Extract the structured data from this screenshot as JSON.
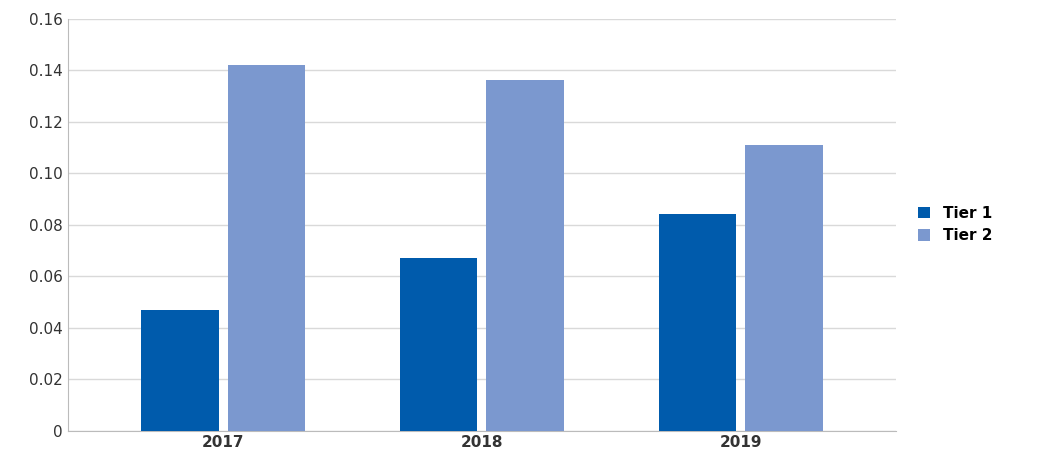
{
  "chart_data": {
    "type": "bar",
    "categories": [
      "2017",
      "2018",
      "2019"
    ],
    "series": [
      {
        "name": "Tier 1",
        "color": "#005bac",
        "values": [
          0.047,
          0.067,
          0.084
        ]
      },
      {
        "name": "Tier 2",
        "color": "#7b98cf",
        "values": [
          0.142,
          0.136,
          0.111
        ]
      }
    ],
    "ylim": [
      0,
      0.16
    ],
    "yticks": [
      0,
      0.02,
      0.04,
      0.06,
      0.08,
      {
        "value": 0.1,
        "label": "0.10"
      },
      0.12,
      0.14,
      0.16
    ],
    "grid": true,
    "legend": "right"
  }
}
